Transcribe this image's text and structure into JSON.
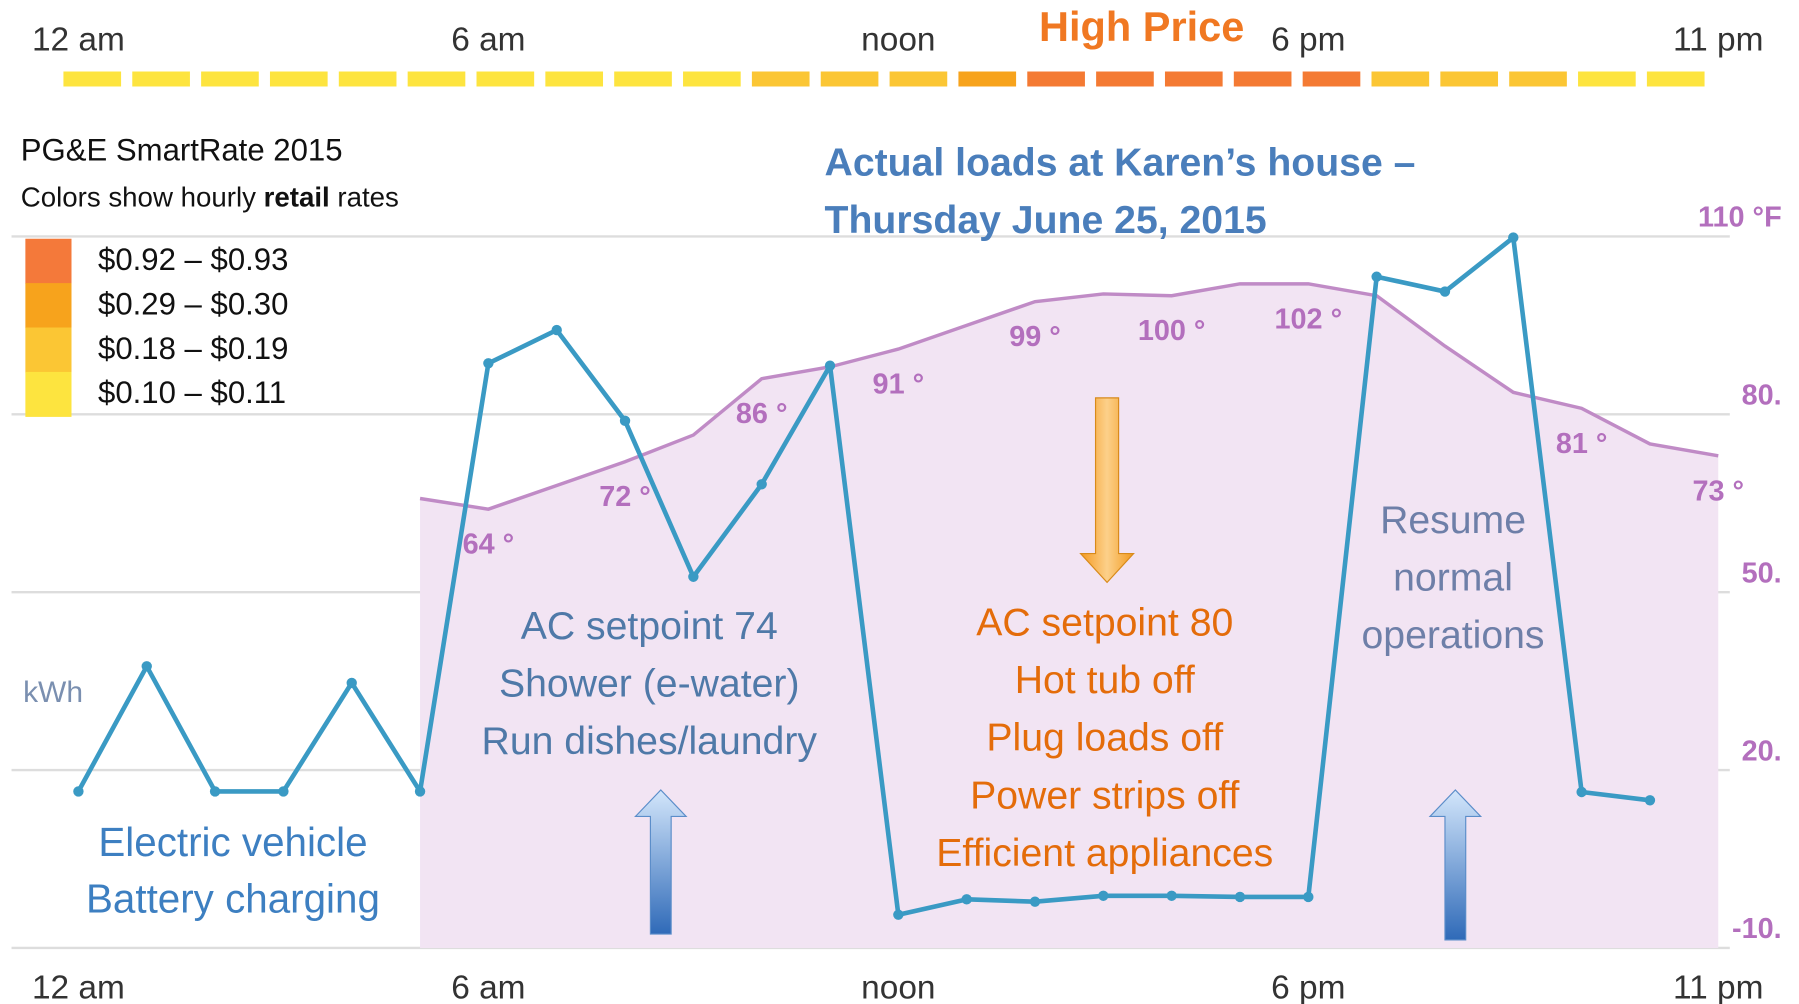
{
  "header": {
    "price_label": "High Price",
    "top_axis": [
      "12 am",
      "6 am",
      "noon",
      "6 pm",
      "11 pm"
    ]
  },
  "price_bar": {
    "colors": [
      "#fde43f",
      "#fde43f",
      "#fde43f",
      "#fde43f",
      "#fde43f",
      "#fde43f",
      "#fde43f",
      "#fde43f",
      "#fde43f",
      "#fde43f",
      "#fbc634",
      "#fbc634",
      "#fbc634",
      "#f7a31c",
      "#f47a33",
      "#f47a33",
      "#f47a33",
      "#f47a33",
      "#f47a33",
      "#fbc634",
      "#fbc634",
      "#fbc634",
      "#fde43f",
      "#fde43f"
    ]
  },
  "legend": {
    "title": "PG&E SmartRate 2015",
    "subtitle_parts": [
      "Colors show hourly ",
      "retail",
      " rates"
    ],
    "items": [
      {
        "label": "$0.92  – $0.93",
        "color": "#f4793a"
      },
      {
        "label": "$0.29  – $0.30",
        "color": "#f7a31c"
      },
      {
        "label": "$0.18  – $0.19",
        "color": "#fbc634"
      },
      {
        "label": "$0.10  – $0.11",
        "color": "#fde43f"
      }
    ]
  },
  "annotations": [
    {
      "lines": [
        "Electric vehicle",
        "Battery charging"
      ]
    },
    {
      "lines": [
        "AC setpoint 74",
        "Shower (e-water)",
        "Run dishes/laundry"
      ]
    },
    {
      "lines": [
        "AC setpoint 80",
        "Hot tub off",
        "Plug loads off",
        "Power strips off",
        "Efficient appliances"
      ]
    },
    {
      "lines": [
        "Resume",
        "normal",
        "operations"
      ]
    }
  ],
  "chart_data": {
    "type": "line",
    "title": "Actual loads at Karen’s house –",
    "subtitle": "Thursday June 25, 2015",
    "y_label": "kWh",
    "categories": [
      "12 am",
      null,
      null,
      null,
      null,
      null,
      "6 am",
      null,
      null,
      null,
      null,
      null,
      "noon",
      null,
      null,
      null,
      null,
      null,
      "6 pm",
      null,
      null,
      null,
      null,
      null,
      "11 pm"
    ],
    "ylim": [
      -10,
      110
    ],
    "yticks": [
      {
        "value": 110,
        "label": "110 °F"
      },
      {
        "value": 80,
        "label": "80."
      },
      {
        "value": 50,
        "label": "50."
      },
      {
        "value": 20,
        "label": "20."
      },
      {
        "value": -10,
        "label": "-10."
      }
    ],
    "grid": true,
    "series": [
      {
        "color": "#3a9ac4",
        "values": [
          16.4,
          37.5,
          16.4,
          16.4,
          34.7,
          16.4,
          88.6,
          94.2,
          78.9,
          52.6,
          68.2,
          88.2,
          -4.4,
          -1.8,
          -2.2,
          -1.2,
          -1.2,
          -1.4,
          -1.4,
          103.2,
          100.7,
          109.8,
          16.3,
          14.9,
          null
        ]
      },
      {
        "color": "#c08bc6",
        "area_color": "#f2e4f3",
        "values": [
          null,
          null,
          null,
          null,
          null,
          65.8,
          64,
          68,
          72,
          76.5,
          86,
          88,
          91,
          95,
          99,
          100.3,
          100,
          102,
          102,
          100,
          91.5,
          83.7,
          81,
          75,
          73
        ],
        "value_labels": [
          null,
          null,
          null,
          null,
          null,
          null,
          "64 °",
          null,
          "72 °",
          null,
          "86 °",
          null,
          "91 °",
          null,
          "99 °",
          null,
          "100 °",
          null,
          "102 °",
          null,
          null,
          null,
          "81 °",
          null,
          "73 °"
        ]
      }
    ]
  }
}
